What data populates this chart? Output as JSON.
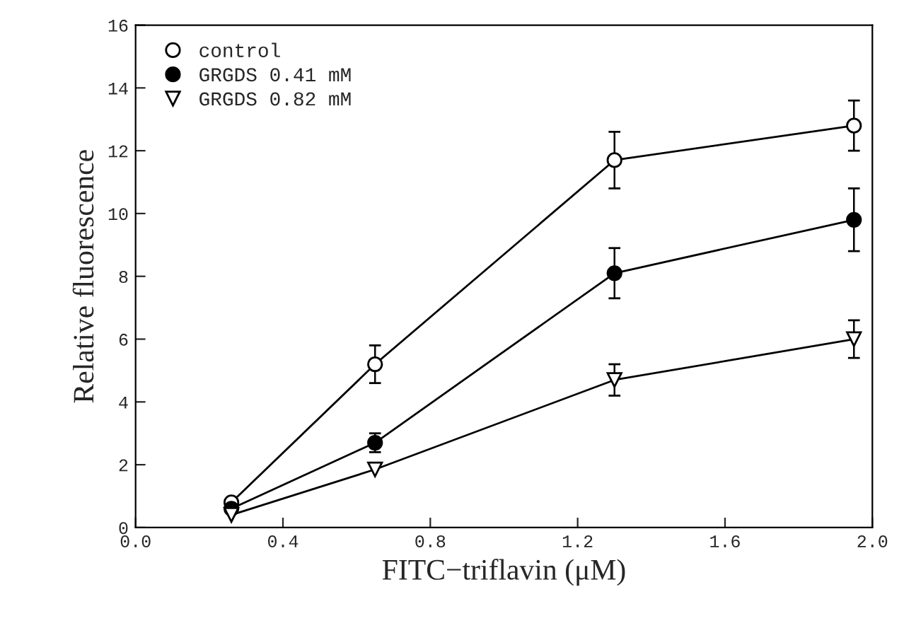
{
  "chart_data": {
    "type": "line",
    "xlabel": "FITC−triflavin (μM)",
    "ylabel": "Relative fluorescence",
    "x": [
      0.26,
      0.65,
      1.3,
      1.95
    ],
    "series": [
      {
        "name": "control",
        "color": "#ffffff",
        "marker": "circle",
        "values": [
          0.8,
          5.2,
          11.7,
          12.8
        ],
        "errors": [
          null,
          0.6,
          0.9,
          0.8
        ]
      },
      {
        "name": "GRGDS 0.41 mM",
        "color": "#000000",
        "marker": "circle",
        "values": [
          0.6,
          2.7,
          8.1,
          9.8
        ],
        "errors": [
          null,
          0.3,
          0.8,
          1.0
        ]
      },
      {
        "name": "GRGDS 0.82 mM",
        "color": "#ffffff",
        "marker": "triangle",
        "values": [
          0.4,
          1.85,
          4.7,
          6.0
        ],
        "errors": [
          null,
          null,
          0.5,
          0.6
        ]
      }
    ],
    "xlim": [
      0,
      2.0
    ],
    "xticks": [
      {
        "value": 0,
        "label": "0.0"
      },
      0.4,
      0.8,
      1.2,
      1.6,
      {
        "value": 2,
        "label": "2.0"
      }
    ],
    "ylim": [
      0,
      16
    ],
    "yticks": [
      0,
      2,
      4,
      6,
      8,
      10,
      12,
      14,
      16
    ],
    "grid": false,
    "legend": "top left",
    "line_style": "solid"
  }
}
